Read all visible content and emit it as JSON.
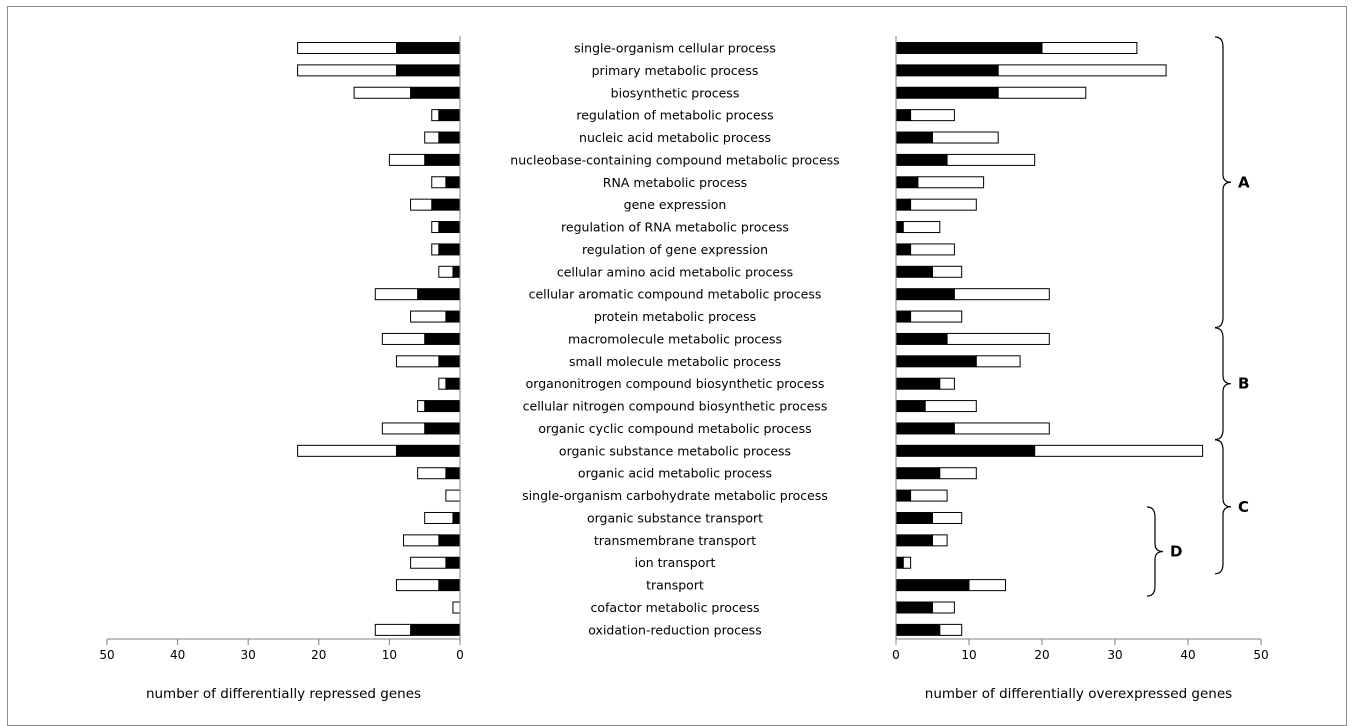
{
  "chart_data": {
    "type": "bar",
    "orientation": "horizontal",
    "stacked": true,
    "categories": [
      "single-organism cellular process",
      "primary metabolic process",
      "biosynthetic process",
      "regulation of metabolic process",
      "nucleic acid metabolic process",
      "nucleobase-containing compound metabolic process",
      "RNA metabolic process",
      "gene expression",
      "regulation of RNA metabolic process",
      "regulation of gene expression",
      "cellular amino acid metabolic process",
      "cellular aromatic compound metabolic process",
      "protein metabolic process",
      "macromolecule metabolic process",
      "small molecule metabolic process",
      "organonitrogen compound biosynthetic process",
      "cellular nitrogen compound biosynthetic process",
      "organic cyclic compound metabolic process",
      "organic substance metabolic process",
      "organic acid metabolic process",
      "single-organism carbohydrate metabolic process",
      "organic substance transport",
      "transmembrane transport",
      "ion transport",
      "transport",
      "cofactor metabolic process",
      "oxidation-reduction process"
    ],
    "panels": [
      {
        "side": "left",
        "xlabel": "number of differentially repressed genes",
        "xlim": [
          50,
          0
        ],
        "ticks": [
          "50",
          "40",
          "30",
          "20",
          "10",
          "0"
        ],
        "series": [
          {
            "fill": "#000000",
            "values": [
              9,
              9,
              7,
              3,
              3,
              5,
              2,
              4,
              3,
              3,
              1,
              6,
              2,
              5,
              3,
              2,
              5,
              5,
              9,
              2,
              0,
              1,
              3,
              2,
              3,
              0,
              7
            ]
          },
          {
            "fill": "#ffffff",
            "values": [
              14,
              14,
              8,
              1,
              2,
              5,
              2,
              3,
              1,
              1,
              2,
              6,
              5,
              6,
              6,
              1,
              1,
              6,
              14,
              4,
              2,
              4,
              5,
              5,
              6,
              1,
              5
            ]
          }
        ]
      },
      {
        "side": "right",
        "xlabel": "number of differentially overexpressed genes",
        "xlim": [
          0,
          50
        ],
        "ticks": [
          "0",
          "10",
          "20",
          "30",
          "40",
          "50"
        ],
        "series": [
          {
            "fill": "#000000",
            "values": [
              20,
              14,
              14,
              2,
              5,
              7,
              3,
              2,
              1,
              2,
              5,
              8,
              2,
              7,
              11,
              6,
              4,
              8,
              19,
              6,
              2,
              5,
              5,
              1,
              10,
              5,
              6
            ]
          },
          {
            "fill": "#ffffff",
            "values": [
              13,
              23,
              12,
              6,
              9,
              12,
              9,
              9,
              5,
              6,
              4,
              13,
              7,
              14,
              6,
              2,
              7,
              13,
              23,
              5,
              5,
              4,
              2,
              1,
              5,
              3,
              3
            ]
          }
        ]
      }
    ],
    "groups": [
      {
        "label": "A",
        "from": 0,
        "to": 12
      },
      {
        "label": "B",
        "from": 13,
        "to": 17
      },
      {
        "label": "C",
        "from": 18,
        "to": 23
      },
      {
        "label": "D",
        "from": 21,
        "to": 24
      }
    ]
  }
}
